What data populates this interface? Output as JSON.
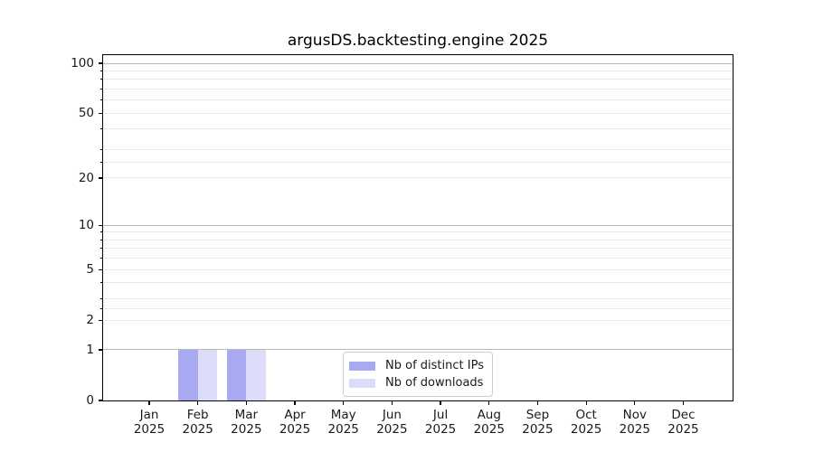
{
  "chart_data": {
    "type": "bar",
    "title": "argusDS.backtesting.engine 2025",
    "categories": [
      "Jan",
      "Feb",
      "Mar",
      "Apr",
      "May",
      "Jun",
      "Jul",
      "Aug",
      "Sep",
      "Oct",
      "Nov",
      "Dec"
    ],
    "x_year_label": "2025",
    "series": [
      {
        "name": "Nb of distinct IPs",
        "color": "#a9a9f2",
        "values": [
          0,
          1,
          1,
          0,
          0,
          0,
          0,
          0,
          0,
          0,
          0,
          0
        ]
      },
      {
        "name": "Nb of downloads",
        "color": "#dcdcf8",
        "values": [
          0,
          1,
          1,
          0,
          0,
          0,
          0,
          0,
          0,
          0,
          0,
          0
        ]
      }
    ],
    "xlabel": "",
    "ylabel": "",
    "yscale": "log1p",
    "ylim": [
      0,
      112
    ],
    "y_tick_labels": [
      "0",
      "1",
      "2",
      "5",
      "10",
      "20",
      "50",
      "100"
    ],
    "y_tick_values": [
      0,
      1,
      2,
      5,
      10,
      20,
      50,
      100
    ],
    "y_major_gridlines": [
      1,
      10,
      100
    ],
    "y_minor_gridlines": [
      2,
      2.5,
      3,
      4,
      5,
      6,
      7,
      8,
      9,
      20,
      25,
      30,
      40,
      50,
      60,
      70,
      80,
      90
    ],
    "grid": true,
    "legend_position": "lower center"
  },
  "colors": {
    "bar_distinct_ips": "#a9a9f2",
    "bar_downloads": "#dcdcf8",
    "major_gridline": "#b8b8b8",
    "minor_gridline": "#e9e9e9",
    "axis": "#000000",
    "tick_text": "#1a1a1a",
    "legend_border": "#cccccc"
  }
}
